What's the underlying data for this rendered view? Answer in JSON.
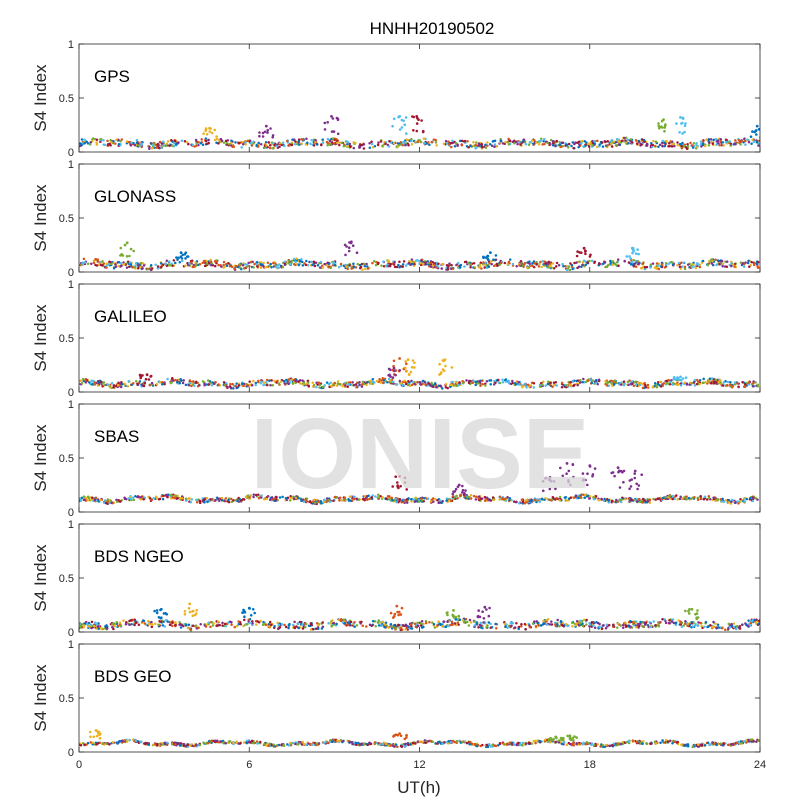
{
  "chart_data": {
    "type": "scatter",
    "title": "HNHH20190502",
    "xlabel": "UT(h)",
    "ylabel": "S4 Index",
    "xlim": [
      0,
      24
    ],
    "ylim": [
      0,
      1
    ],
    "x_ticks": [
      "0",
      "6",
      "12",
      "18",
      "24"
    ],
    "y_ticks": [
      "0",
      "0.5",
      "1"
    ],
    "grid": false,
    "watermark": "IONISE",
    "colors": [
      "#0072BD",
      "#D95319",
      "#EDB120",
      "#7E2F8E",
      "#77AC30",
      "#4DBEEE",
      "#A2142F"
    ],
    "panels": [
      {
        "label": "GPS",
        "baseline": 0.08,
        "spread": 0.03,
        "features": [
          {
            "x": 8.9,
            "y": 0.33,
            "color": "#7E2F8E"
          },
          {
            "x": 11.3,
            "y": 0.33,
            "color": "#4DBEEE"
          },
          {
            "x": 11.9,
            "y": 0.33,
            "color": "#A2142F"
          },
          {
            "x": 4.6,
            "y": 0.22,
            "color": "#EDB120"
          },
          {
            "x": 21.2,
            "y": 0.32,
            "color": "#4DBEEE"
          },
          {
            "x": 20.6,
            "y": 0.3,
            "color": "#77AC30"
          },
          {
            "x": 6.6,
            "y": 0.24,
            "color": "#7E2F8E"
          },
          {
            "x": 23.9,
            "y": 0.24,
            "color": "#0072BD"
          }
        ]
      },
      {
        "label": "GLONASS",
        "baseline": 0.07,
        "spread": 0.03,
        "features": [
          {
            "x": 1.7,
            "y": 0.27,
            "color": "#77AC30"
          },
          {
            "x": 9.6,
            "y": 0.28,
            "color": "#7E2F8E"
          },
          {
            "x": 3.6,
            "y": 0.18,
            "color": "#0072BD"
          },
          {
            "x": 17.8,
            "y": 0.22,
            "color": "#A2142F"
          },
          {
            "x": 19.5,
            "y": 0.22,
            "color": "#4DBEEE"
          },
          {
            "x": 14.5,
            "y": 0.18,
            "color": "#0072BD"
          }
        ]
      },
      {
        "label": "GALILEO",
        "baseline": 0.08,
        "spread": 0.025,
        "features": [
          {
            "x": 11.3,
            "y": 0.31,
            "color": "#D95319"
          },
          {
            "x": 11.6,
            "y": 0.3,
            "color": "#EDB120"
          },
          {
            "x": 12.9,
            "y": 0.3,
            "color": "#EDB120"
          },
          {
            "x": 2.4,
            "y": 0.16,
            "color": "#A2142F"
          },
          {
            "x": 11.1,
            "y": 0.22,
            "color": "#7E2F8E"
          },
          {
            "x": 21.2,
            "y": 0.14,
            "color": "#4DBEEE"
          }
        ]
      },
      {
        "label": "SBAS",
        "baseline": 0.12,
        "spread": 0.02,
        "features": [
          {
            "x": 17.2,
            "y": 0.45,
            "color": "#7E2F8E"
          },
          {
            "x": 18.0,
            "y": 0.43,
            "color": "#7E2F8E"
          },
          {
            "x": 19.0,
            "y": 0.41,
            "color": "#7E2F8E"
          },
          {
            "x": 19.6,
            "y": 0.38,
            "color": "#7E2F8E"
          },
          {
            "x": 16.6,
            "y": 0.32,
            "color": "#7E2F8E"
          },
          {
            "x": 11.3,
            "y": 0.33,
            "color": "#A2142F"
          },
          {
            "x": 13.4,
            "y": 0.25,
            "color": "#7E2F8E"
          }
        ]
      },
      {
        "label": "BDS NGEO",
        "baseline": 0.07,
        "spread": 0.03,
        "features": [
          {
            "x": 2.9,
            "y": 0.21,
            "color": "#0072BD"
          },
          {
            "x": 3.9,
            "y": 0.26,
            "color": "#EDB120"
          },
          {
            "x": 6.0,
            "y": 0.22,
            "color": "#0072BD"
          },
          {
            "x": 11.2,
            "y": 0.24,
            "color": "#D95319"
          },
          {
            "x": 14.3,
            "y": 0.23,
            "color": "#7E2F8E"
          },
          {
            "x": 21.6,
            "y": 0.21,
            "color": "#77AC30"
          },
          {
            "x": 13.2,
            "y": 0.2,
            "color": "#77AC30"
          }
        ]
      },
      {
        "label": "BDS GEO",
        "baseline": 0.08,
        "spread": 0.012,
        "features": [
          {
            "x": 0.6,
            "y": 0.2,
            "color": "#EDB120"
          },
          {
            "x": 11.3,
            "y": 0.17,
            "color": "#D95319"
          },
          {
            "x": 16.8,
            "y": 0.14,
            "color": "#77AC30"
          },
          {
            "x": 17.3,
            "y": 0.15,
            "color": "#77AC30"
          }
        ]
      }
    ]
  }
}
